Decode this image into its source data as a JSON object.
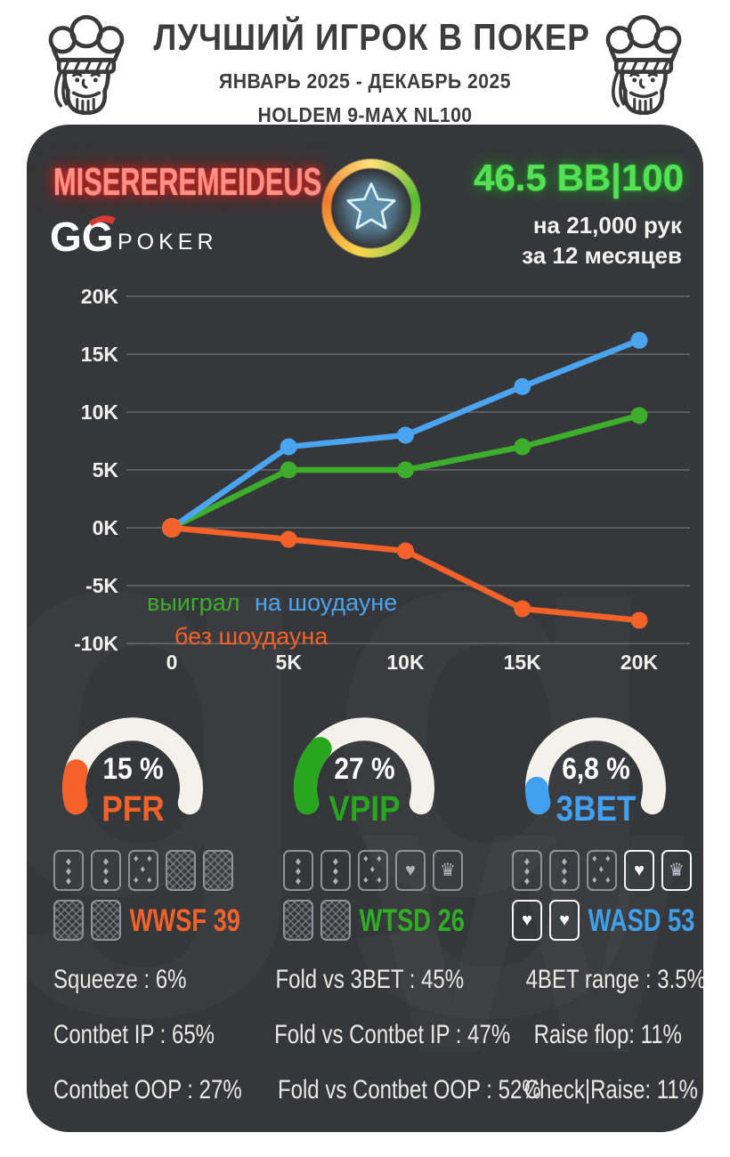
{
  "header": {
    "title": "ЛУЧШИЙ ИГРОК В ПОКЕР",
    "subtitle": "ЯНВАРЬ 2025 - ДЕКАБРЬ 2025",
    "format": "HOLDEM 9-MAX NL100"
  },
  "profile": {
    "player": "MISEREREMEIDEUS",
    "logo_gg": "GG",
    "logo_poker": "POKER",
    "winrate": "46.5 BB|100",
    "sample_line1": "на 21,000 рук",
    "sample_line2": "за 12 месяцев",
    "winrate_color": "#55e156",
    "player_color": "#ff9187"
  },
  "chart_data": {
    "type": "line",
    "x": [
      0,
      5000,
      10000,
      15000,
      20000
    ],
    "x_tick_labels": [
      "0",
      "5K",
      "10K",
      "15K",
      "20K"
    ],
    "y_ticks": [
      20000,
      15000,
      10000,
      5000,
      0,
      -5000,
      -10000
    ],
    "y_tick_labels": [
      "20K",
      "15K",
      "10K",
      "5K",
      "0K",
      "-5K",
      "-10K"
    ],
    "ylim": [
      -10000,
      20000
    ],
    "grid": true,
    "legend_position": "top-left-inside",
    "series": [
      {
        "name": "выиграл",
        "color": "#3cae2b",
        "values": [
          0,
          5000,
          5000,
          7000,
          9700
        ]
      },
      {
        "name": "на шоудауне",
        "color": "#4aa4f0",
        "values": [
          0,
          7000,
          8000,
          12200,
          16200
        ]
      },
      {
        "name": "без шоудауна",
        "color": "#f4622a",
        "values": [
          0,
          -1000,
          -2000,
          -7000,
          -8000
        ]
      }
    ]
  },
  "gauges": [
    {
      "label": "PFR",
      "value_text": "15 %",
      "percent": 15,
      "color": "#f4622a"
    },
    {
      "label": "VPIP",
      "value_text": "27 %",
      "percent": 27,
      "color": "#28a61e"
    },
    {
      "label": "3BET",
      "value_text": "6,8 %",
      "percent": 6.8,
      "color": "#41a0f0"
    }
  ],
  "gauge_track_color": "#f3f1ea",
  "hand_blocks": [
    {
      "label": "WWSF 39",
      "color": "#f4622a",
      "row1": [
        "d3",
        "d3",
        "d5",
        "back",
        "back"
      ],
      "row2": [
        "back",
        "back"
      ]
    },
    {
      "label": "WTSD 26",
      "color": "#2fae24",
      "row1": [
        "d3",
        "d3",
        "d5",
        "heart",
        "crown"
      ],
      "row2": [
        "back",
        "back"
      ]
    },
    {
      "label": "WASD 53",
      "color": "#3f9fe8",
      "row1": [
        "d3",
        "d3",
        "d5",
        "heartW",
        "crownS"
      ],
      "row2": [
        "heartW",
        "heartW"
      ]
    }
  ],
  "stats": {
    "col1": [
      "Squeeze : 6%",
      "Contbet IP : 65%",
      "Contbet OOP : 27%"
    ],
    "col2": [
      "Fold vs 3BET : 45%",
      "Fold vs Contbet IP : 47%",
      "Fold vs Contbet OOP : 52%"
    ],
    "col3": [
      "4BET range : 3.5%",
      "Raise flop: 11%",
      "Check|Raise: 11%"
    ]
  }
}
